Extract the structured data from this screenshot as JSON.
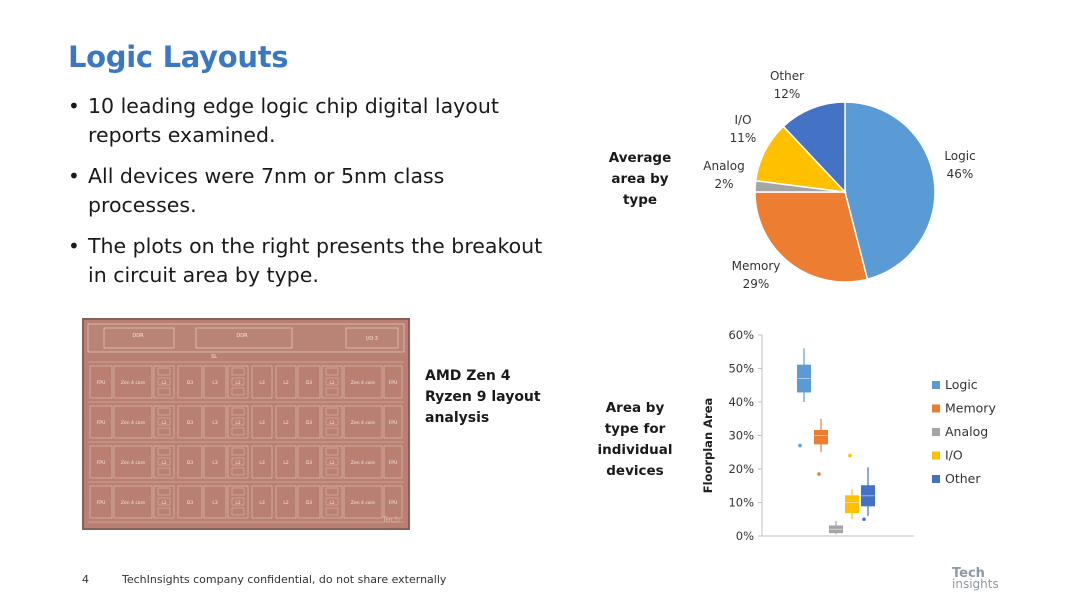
{
  "slide": {
    "title": "Logic Layouts",
    "bullets": [
      "10 leading edge logic chip digital layout reports examined.",
      "All devices were 7nm or 5nm class processes.",
      "The plots on the right presents the breakout in circuit area by type."
    ]
  },
  "die_photo": {
    "caption_lines": [
      "AMD Zen 4",
      "Ryzen 9 layout",
      "analysis"
    ],
    "labels": {
      "ddr": "DDR",
      "io": "I/O 3",
      "sl": "SL",
      "core": "Zen 4 core",
      "fpu": "FPU",
      "l2": "L2",
      "l3": "L3",
      "d3": "D3",
      "watermark": "Tech"
    }
  },
  "pie_section": {
    "side_label_lines": [
      "Average",
      "area by",
      "type"
    ]
  },
  "box_section": {
    "side_label_lines": [
      "Area by",
      "type for",
      "individual",
      "devices"
    ]
  },
  "chart_data": [
    {
      "type": "pie",
      "title": "Average area by type",
      "slices": [
        {
          "name": "Logic",
          "value": 46,
          "label": "46%",
          "color": "#5b9bd5"
        },
        {
          "name": "Memory",
          "value": 29,
          "label": "29%",
          "color": "#ed7d31"
        },
        {
          "name": "Analog",
          "value": 2,
          "label": "2%",
          "color": "#a5a5a5"
        },
        {
          "name": "I/O",
          "value": 11,
          "label": "11%",
          "color": "#ffc000"
        },
        {
          "name": "Other",
          "value": 12,
          "label": "12%",
          "color": "#4472c4"
        }
      ]
    },
    {
      "type": "box",
      "title": "Area by type for individual devices",
      "ylabel": "Floorplan Area",
      "ylim": [
        0,
        60
      ],
      "yticks": [
        "0%",
        "10%",
        "20%",
        "30%",
        "40%",
        "50%",
        "60%"
      ],
      "series": [
        {
          "name": "Logic",
          "color": "#5b9bd5",
          "q1": 43,
          "median": 47,
          "q3": 51,
          "min": 40,
          "max": 56,
          "outliers": [
            27
          ]
        },
        {
          "name": "Memory",
          "color": "#ed7d31",
          "q1": 27.5,
          "median": 30,
          "q3": 31.5,
          "min": 25,
          "max": 35,
          "outliers": [
            18.5
          ]
        },
        {
          "name": "Analog",
          "color": "#a5a5a5",
          "q1": 1,
          "median": 2,
          "q3": 3,
          "min": 0.5,
          "max": 4.5,
          "outliers": []
        },
        {
          "name": "I/O",
          "color": "#ffc000",
          "q1": 7,
          "median": 10,
          "q3": 12,
          "min": 5,
          "max": 14,
          "outliers": [
            24
          ]
        },
        {
          "name": "Other",
          "color": "#4472c4",
          "q1": 9,
          "median": 12,
          "q3": 15,
          "min": 6,
          "max": 20.5,
          "outliers": [
            5
          ]
        }
      ]
    }
  ],
  "footer": {
    "page_number": "4",
    "text": "TechInsights company confidential, do not share externally",
    "logo_line1": "Tech",
    "logo_line2": "insights"
  }
}
